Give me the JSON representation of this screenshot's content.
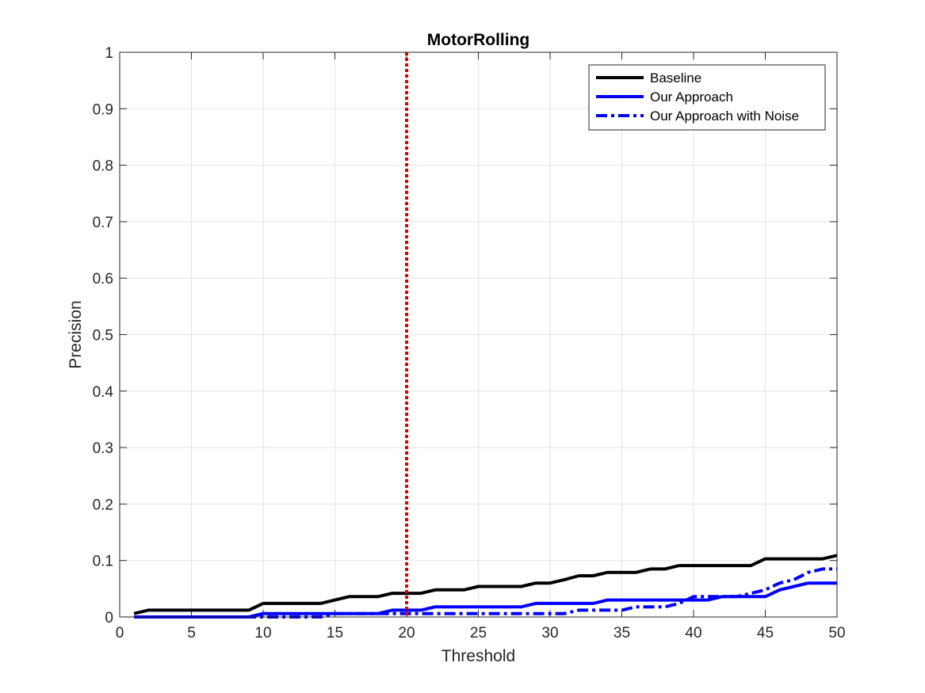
{
  "chart_data": {
    "type": "line",
    "title": "MotorRolling",
    "xlabel": "Threshold",
    "ylabel": "Precision",
    "xlim": [
      0,
      50
    ],
    "ylim": [
      0,
      1
    ],
    "xticks": [
      "0",
      "5",
      "10",
      "15",
      "20",
      "25",
      "30",
      "35",
      "40",
      "45",
      "50"
    ],
    "yticks": [
      "0",
      "0.1",
      "0.2",
      "0.3",
      "0.4",
      "0.5",
      "0.6",
      "0.7",
      "0.8",
      "0.9",
      "1"
    ],
    "grid": true,
    "legend_position": "top-right",
    "reference_line": {
      "x": 20,
      "color": "#e00000",
      "style": "dotted"
    },
    "series": [
      {
        "name": "Baseline",
        "color": "#000000",
        "style": "solid",
        "x": [
          1,
          2,
          3,
          4,
          5,
          6,
          7,
          8,
          9,
          10,
          11,
          12,
          13,
          14,
          15,
          16,
          17,
          18,
          19,
          20,
          21,
          22,
          23,
          24,
          25,
          26,
          27,
          28,
          29,
          30,
          31,
          32,
          33,
          34,
          35,
          36,
          37,
          38,
          39,
          40,
          41,
          42,
          43,
          44,
          45,
          46,
          47,
          48,
          49,
          50
        ],
        "y": [
          0.006,
          0.012,
          0.012,
          0.012,
          0.012,
          0.012,
          0.012,
          0.012,
          0.012,
          0.024,
          0.024,
          0.024,
          0.024,
          0.024,
          0.03,
          0.036,
          0.036,
          0.036,
          0.042,
          0.042,
          0.042,
          0.048,
          0.048,
          0.048,
          0.054,
          0.054,
          0.054,
          0.054,
          0.06,
          0.06,
          0.066,
          0.073,
          0.073,
          0.079,
          0.079,
          0.079,
          0.085,
          0.085,
          0.091,
          0.091,
          0.091,
          0.091,
          0.091,
          0.091,
          0.103,
          0.103,
          0.103,
          0.103,
          0.103,
          0.109
        ]
      },
      {
        "name": "Our Approach",
        "color": "#0000ff",
        "style": "solid",
        "x": [
          1,
          2,
          3,
          4,
          5,
          6,
          7,
          8,
          9,
          10,
          11,
          12,
          13,
          14,
          15,
          16,
          17,
          18,
          19,
          20,
          21,
          22,
          23,
          24,
          25,
          26,
          27,
          28,
          29,
          30,
          31,
          32,
          33,
          34,
          35,
          36,
          37,
          38,
          39,
          40,
          41,
          42,
          43,
          44,
          45,
          46,
          47,
          48,
          49,
          50
        ],
        "y": [
          0,
          0,
          0,
          0,
          0,
          0,
          0,
          0,
          0,
          0.006,
          0.006,
          0.006,
          0.006,
          0.006,
          0.006,
          0.006,
          0.006,
          0.006,
          0.012,
          0.012,
          0.012,
          0.018,
          0.018,
          0.018,
          0.018,
          0.018,
          0.018,
          0.018,
          0.024,
          0.024,
          0.024,
          0.024,
          0.024,
          0.03,
          0.03,
          0.03,
          0.03,
          0.03,
          0.03,
          0.03,
          0.03,
          0.036,
          0.036,
          0.036,
          0.036,
          0.048,
          0.054,
          0.06,
          0.06,
          0.06
        ]
      },
      {
        "name": "Our Approach with Noise",
        "color": "#0000ff",
        "style": "dashdot",
        "x": [
          1,
          2,
          3,
          4,
          5,
          6,
          7,
          8,
          9,
          10,
          11,
          12,
          13,
          14,
          15,
          16,
          17,
          18,
          19,
          20,
          21,
          22,
          23,
          24,
          25,
          26,
          27,
          28,
          29,
          30,
          31,
          32,
          33,
          34,
          35,
          36,
          37,
          38,
          39,
          40,
          41,
          42,
          43,
          44,
          45,
          46,
          47,
          48,
          49,
          50
        ],
        "y": [
          0,
          0,
          0,
          0,
          0,
          0,
          0,
          0,
          0,
          0,
          0,
          0,
          0,
          0,
          0.006,
          0.006,
          0.006,
          0.006,
          0.006,
          0.006,
          0.006,
          0.006,
          0.006,
          0.006,
          0.006,
          0.006,
          0.006,
          0.006,
          0.006,
          0.006,
          0.006,
          0.012,
          0.012,
          0.012,
          0.012,
          0.018,
          0.018,
          0.018,
          0.024,
          0.036,
          0.036,
          0.036,
          0.036,
          0.042,
          0.048,
          0.06,
          0.066,
          0.079,
          0.085,
          0.085
        ]
      }
    ]
  }
}
